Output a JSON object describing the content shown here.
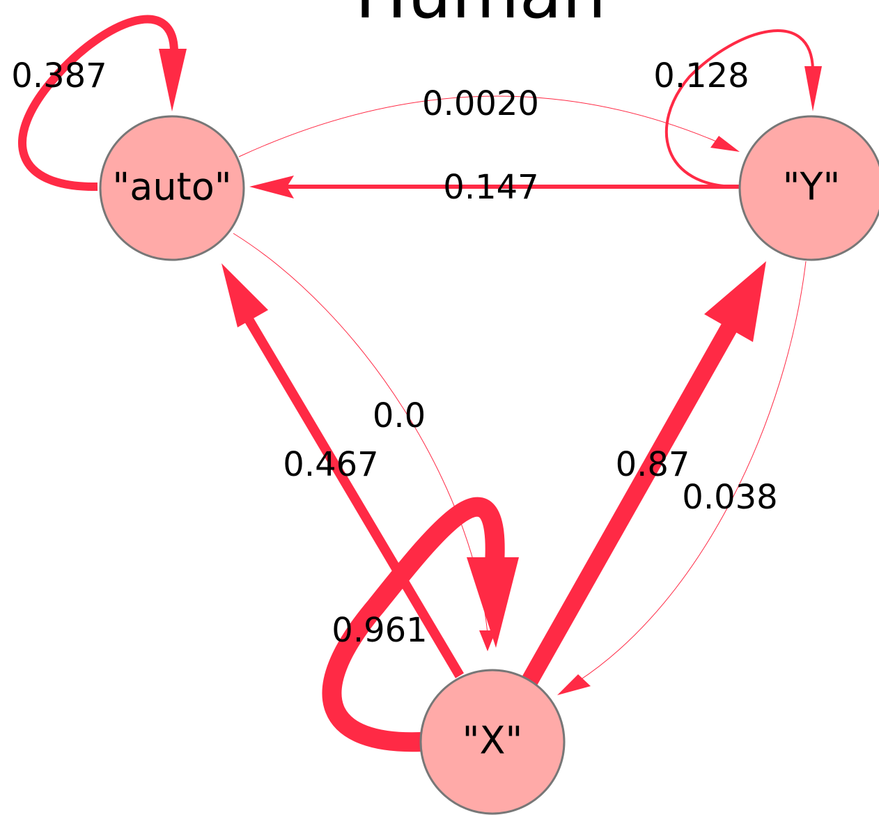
{
  "title": "Human",
  "nodes": [
    {
      "label": "\"auto\""
    },
    {
      "label": "\"Y\""
    },
    {
      "label": "\"X\""
    }
  ],
  "edges": [
    {
      "from": "\"auto\"",
      "to": "\"auto\"",
      "label": "0.387"
    },
    {
      "from": "\"Y\"",
      "to": "\"Y\"",
      "label": "0.128"
    },
    {
      "from": "\"auto\"",
      "to": "\"Y\"",
      "label": "0.0020"
    },
    {
      "from": "\"Y\"",
      "to": "\"auto\"",
      "label": "0.147"
    },
    {
      "from": "\"auto\"",
      "to": "\"X\"",
      "label": "0.0"
    },
    {
      "from": "\"X\"",
      "to": "\"auto\"",
      "label": "0.467"
    },
    {
      "from": "\"X\"",
      "to": "\"Y\"",
      "label": "0.87"
    },
    {
      "from": "\"Y\"",
      "to": "\"X\"",
      "label": "0.038"
    },
    {
      "from": "\"X\"",
      "to": "\"X\"",
      "label": "0.961"
    }
  ]
}
